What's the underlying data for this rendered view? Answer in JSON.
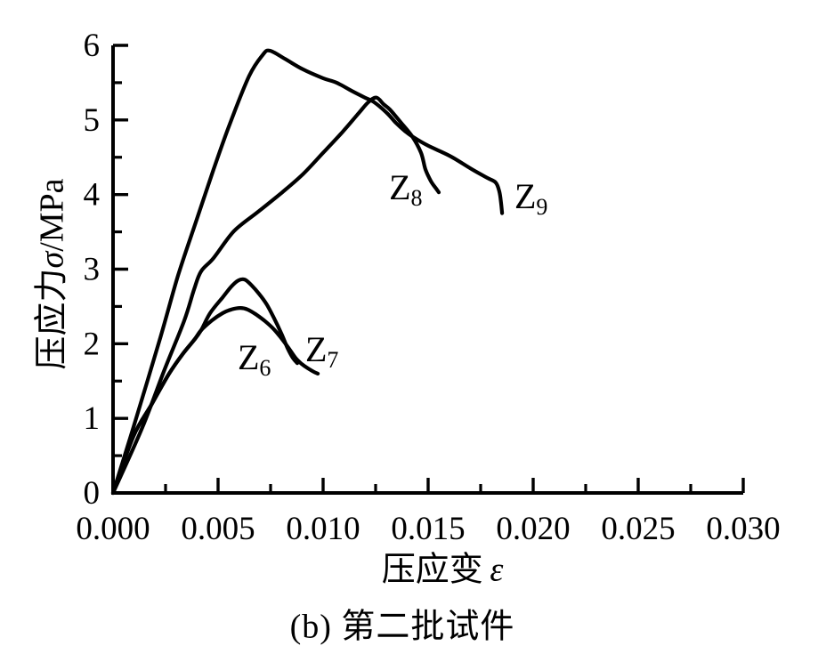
{
  "figure": {
    "caption": "(b) 第二批试件",
    "xlabel": {
      "text": "压应变",
      "symbol": "ε"
    },
    "ylabel": {
      "text": "压应力",
      "symbol": "σ",
      "unit": "/MPa"
    }
  },
  "chart_data": {
    "type": "line",
    "title": "",
    "xlabel": "压应变 ε",
    "ylabel": "压应力 σ/MPa",
    "xlim": [
      0,
      0.03
    ],
    "ylim": [
      0,
      6
    ],
    "grid": false,
    "legend": "inline-labels",
    "line_color": "#000000",
    "background": "#ffffff",
    "x_major_ticks": [
      0,
      0.005,
      0.01,
      0.015,
      0.02,
      0.025,
      0.03
    ],
    "x_tick_labels": [
      "0.000",
      "0.005",
      "0.010",
      "0.015",
      "0.020",
      "0.025",
      "0.030"
    ],
    "x_minor_ticks": [
      0.0025,
      0.0075,
      0.0125,
      0.0175,
      0.0225,
      0.0275
    ],
    "y_major_ticks": [
      0,
      1,
      2,
      3,
      4,
      5,
      6
    ],
    "y_tick_labels": [
      "0",
      "1",
      "2",
      "3",
      "4",
      "5",
      "6"
    ],
    "y_minor_ticks": [
      0.5,
      1.5,
      2.5,
      3.5,
      4.5,
      5.5
    ],
    "series": [
      {
        "name": "Z6",
        "label_main": "Z",
        "label_sub": "6",
        "label_anchor": {
          "x": 0.00593,
          "y": 1.69
        },
        "peak": {
          "x": 0.0062,
          "y": 2.86
        },
        "points": [
          [
            0,
            0
          ],
          [
            0.00097,
            0.76
          ],
          [
            0.00182,
            1.18
          ],
          [
            0.00267,
            1.6
          ],
          [
            0.00331,
            1.86
          ],
          [
            0.00386,
            2.05
          ],
          [
            0.00419,
            2.18
          ],
          [
            0.00462,
            2.41
          ],
          [
            0.00521,
            2.62
          ],
          [
            0.00564,
            2.77
          ],
          [
            0.00597,
            2.85
          ],
          [
            0.00627,
            2.86
          ],
          [
            0.00657,
            2.79
          ],
          [
            0.00695,
            2.67
          ],
          [
            0.00733,
            2.52
          ],
          [
            0.00767,
            2.34
          ],
          [
            0.00801,
            2.14
          ],
          [
            0.00831,
            1.94
          ],
          [
            0.00856,
            1.81
          ],
          [
            0.00877,
            1.74
          ]
        ]
      },
      {
        "name": "Z7",
        "label_main": "Z",
        "label_sub": "7",
        "label_anchor": {
          "x": 0.00915,
          "y": 1.8
        },
        "peak": {
          "x": 0.00606,
          "y": 2.48
        },
        "points": [
          [
            0,
            0
          ],
          [
            0.00097,
            0.76
          ],
          [
            0.00182,
            1.18
          ],
          [
            0.00267,
            1.6
          ],
          [
            0.00331,
            1.86
          ],
          [
            0.00386,
            2.05
          ],
          [
            0.00419,
            2.18
          ],
          [
            0.0047,
            2.31
          ],
          [
            0.00521,
            2.41
          ],
          [
            0.00564,
            2.46
          ],
          [
            0.00606,
            2.48
          ],
          [
            0.0064,
            2.46
          ],
          [
            0.00682,
            2.39
          ],
          [
            0.00725,
            2.3
          ],
          [
            0.00767,
            2.19
          ],
          [
            0.00805,
            2.06
          ],
          [
            0.00839,
            1.93
          ],
          [
            0.00869,
            1.81
          ],
          [
            0.00898,
            1.73
          ],
          [
            0.00928,
            1.67
          ],
          [
            0.00958,
            1.62
          ],
          [
            0.00975,
            1.6
          ]
        ]
      },
      {
        "name": "Z8",
        "label_main": "Z",
        "label_sub": "8",
        "label_anchor": {
          "x": 0.01314,
          "y": 3.97
        },
        "peak": {
          "x": 0.01254,
          "y": 5.3
        },
        "points": [
          [
            0,
            0
          ],
          [
            0.0014,
            0.88
          ],
          [
            0.00246,
            1.66
          ],
          [
            0.00339,
            2.31
          ],
          [
            0.00386,
            2.73
          ],
          [
            0.00419,
            2.97
          ],
          [
            0.00479,
            3.15
          ],
          [
            0.00576,
            3.51
          ],
          [
            0.00691,
            3.77
          ],
          [
            0.00805,
            4.03
          ],
          [
            0.00903,
            4.27
          ],
          [
            0.01,
            4.56
          ],
          [
            0.01093,
            4.84
          ],
          [
            0.01169,
            5.09
          ],
          [
            0.01216,
            5.24
          ],
          [
            0.01254,
            5.3
          ],
          [
            0.01288,
            5.21
          ],
          [
            0.01318,
            5.14
          ],
          [
            0.01369,
            4.97
          ],
          [
            0.01424,
            4.78
          ],
          [
            0.01466,
            4.56
          ],
          [
            0.01487,
            4.34
          ],
          [
            0.01513,
            4.18
          ],
          [
            0.01538,
            4.08
          ],
          [
            0.01551,
            4.03
          ]
        ]
      },
      {
        "name": "Z9",
        "label_main": "Z",
        "label_sub": "9",
        "label_anchor": {
          "x": 0.01911,
          "y": 3.85
        },
        "peak": {
          "x": 0.00746,
          "y": 5.93
        },
        "points": [
          [
            0,
            0
          ],
          [
            0.00097,
            0.88
          ],
          [
            0.00225,
            2.08
          ],
          [
            0.00309,
            2.91
          ],
          [
            0.00394,
            3.63
          ],
          [
            0.00479,
            4.34
          ],
          [
            0.00555,
            4.94
          ],
          [
            0.00648,
            5.59
          ],
          [
            0.00712,
            5.87
          ],
          [
            0.00746,
            5.93
          ],
          [
            0.00818,
            5.82
          ],
          [
            0.00903,
            5.68
          ],
          [
            0.01,
            5.56
          ],
          [
            0.01064,
            5.5
          ],
          [
            0.01136,
            5.39
          ],
          [
            0.01199,
            5.3
          ],
          [
            0.01242,
            5.24
          ],
          [
            0.01305,
            5.09
          ],
          [
            0.01347,
            4.96
          ],
          [
            0.0139,
            4.85
          ],
          [
            0.01424,
            4.78
          ],
          [
            0.01496,
            4.66
          ],
          [
            0.01602,
            4.52
          ],
          [
            0.01708,
            4.34
          ],
          [
            0.01784,
            4.22
          ],
          [
            0.01822,
            4.16
          ],
          [
            0.01839,
            4.04
          ],
          [
            0.01847,
            3.89
          ],
          [
            0.01852,
            3.75
          ]
        ]
      }
    ]
  }
}
